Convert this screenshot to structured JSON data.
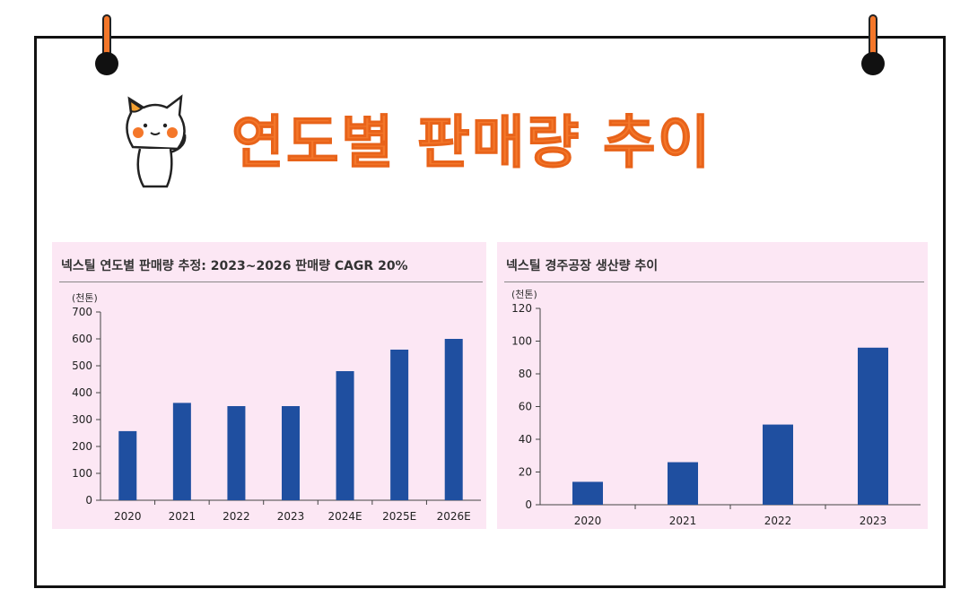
{
  "page": {
    "title": "연도별 판매량 추이"
  },
  "chart_data": [
    {
      "type": "bar",
      "title": "넥스틸 연도별 판매량 추정: 2023~2026 판매량 CAGR 20%",
      "unit": "(천톤)",
      "categories": [
        "2020",
        "2021",
        "2022",
        "2023",
        "2024E",
        "2025E",
        "2026E"
      ],
      "values": [
        257,
        362,
        350,
        350,
        480,
        560,
        600
      ],
      "ylim": [
        0,
        700
      ],
      "yticks": [
        0,
        100,
        200,
        300,
        400,
        500,
        600,
        700
      ],
      "bar_color": "#1f4fa0",
      "grid": false
    },
    {
      "type": "bar",
      "title": "넥스틸 경주공장 생산량 추이",
      "unit": "(천톤)",
      "categories": [
        "2020",
        "2021",
        "2022",
        "2023"
      ],
      "values": [
        14,
        26,
        49,
        96
      ],
      "ylim": [
        0,
        120
      ],
      "yticks": [
        0,
        20,
        40,
        60,
        80,
        100,
        120
      ],
      "bar_color": "#1f4fa0",
      "grid": false
    }
  ],
  "colors": {
    "accent": "#f4772a",
    "panel_bg": "#fce7f4",
    "bar": "#1f4fa0"
  }
}
